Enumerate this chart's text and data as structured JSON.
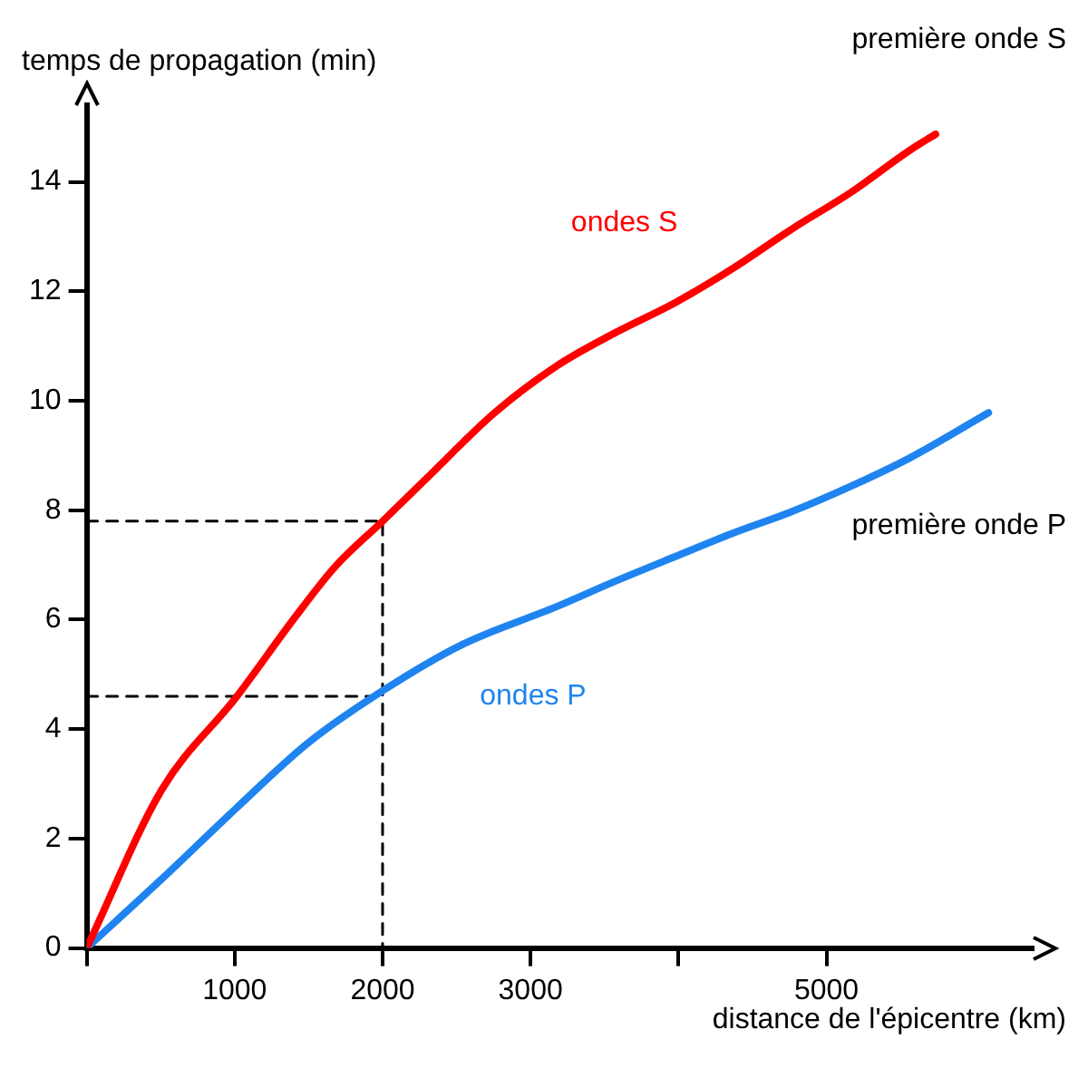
{
  "chart_data": {
    "type": "line",
    "xlabel": "distance de l'épicentre (km)",
    "ylabel": "temps de propagation (min)",
    "xlim": [
      0,
      6400
    ],
    "ylim": [
      0,
      15.4
    ],
    "xticks": [
      {
        "value": 0,
        "label": null
      },
      1000,
      2000,
      3000,
      {
        "value": 4000,
        "label": null
      },
      5000
    ],
    "yticks": [
      0,
      2,
      4,
      6,
      8,
      10,
      12,
      14
    ],
    "grid": false,
    "legend": false,
    "marker": "none",
    "series": [
      {
        "name": "ondes S",
        "color": "#ff0000",
        "x": [
          0,
          507,
          1013,
          1413,
          1680,
          2000,
          2297,
          2757,
          3179,
          3571,
          3976,
          4369,
          4762,
          5167,
          5560,
          5738
        ],
        "values": [
          0,
          2.89,
          4.59,
          6.06,
          6.97,
          7.8,
          8.58,
          9.78,
          10.64,
          11.24,
          11.79,
          12.42,
          13.13,
          13.81,
          14.57,
          14.87
        ]
      },
      {
        "name": "ondes P",
        "color": "#1f84f0",
        "x": [
          0,
          507,
          1013,
          1493,
          2000,
          2527,
          3179,
          3571,
          3976,
          4369,
          4762,
          5167,
          5560,
          6095
        ],
        "values": [
          0,
          1.26,
          2.56,
          3.74,
          4.7,
          5.53,
          6.24,
          6.7,
          7.15,
          7.58,
          7.97,
          8.44,
          8.95,
          9.78
        ]
      },
      {
        "color": "#000000",
        "line_style": "dashed",
        "x": [
          0,
          2000,
          2000
        ],
        "values": [
          7.8,
          7.8,
          0
        ]
      },
      {
        "color": "#000000",
        "line_style": "dashed",
        "x": [
          0,
          2000
        ],
        "values": [
          4.6,
          4.6
        ]
      }
    ],
    "annotations": [
      "première onde S",
      "première onde P"
    ]
  }
}
